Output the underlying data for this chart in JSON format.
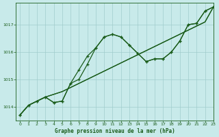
{
  "background_color": "#c8eaea",
  "grid_color": "#a0cccc",
  "line_color": "#1a5c1a",
  "text_color": "#1a5c1a",
  "xlabel": "Graphe pression niveau de la mer (hPa)",
  "xlim": [
    -0.5,
    23
  ],
  "ylim": [
    1013.5,
    1017.8
  ],
  "yticks": [
    1014,
    1015,
    1016,
    1017
  ],
  "xticks": [
    0,
    1,
    2,
    3,
    4,
    5,
    6,
    7,
    8,
    9,
    10,
    11,
    12,
    13,
    14,
    15,
    16,
    17,
    18,
    19,
    20,
    21,
    22,
    23
  ],
  "hours": [
    0,
    1,
    2,
    3,
    4,
    5,
    6,
    7,
    8,
    9,
    10,
    11,
    12,
    13,
    14,
    15,
    16,
    17,
    18,
    19,
    20,
    21,
    22,
    23
  ],
  "line_wavy": [
    1013.7,
    1014.05,
    1014.2,
    1014.35,
    1014.15,
    1014.2,
    1014.85,
    1015.0,
    1015.55,
    1016.15,
    1016.55,
    1016.65,
    1016.55,
    1016.25,
    1015.95,
    1015.65,
    1015.75,
    1015.75,
    1016.0,
    1016.4,
    1017.0,
    1017.05,
    1017.5,
    1017.65
  ],
  "line_straight1": [
    1013.7,
    1014.05,
    1014.2,
    1014.35,
    1014.45,
    1014.55,
    1014.7,
    1014.85,
    1015.0,
    1015.15,
    1015.3,
    1015.45,
    1015.6,
    1015.75,
    1015.9,
    1016.05,
    1016.2,
    1016.35,
    1016.5,
    1016.65,
    1016.8,
    1016.95,
    1017.1,
    1017.65
  ],
  "line_straight2": [
    1013.7,
    1014.05,
    1014.2,
    1014.35,
    1014.45,
    1014.55,
    1014.7,
    1014.85,
    1015.0,
    1015.15,
    1015.3,
    1015.45,
    1015.6,
    1015.75,
    1015.9,
    1016.05,
    1016.2,
    1016.35,
    1016.5,
    1016.65,
    1016.8,
    1016.95,
    1017.1,
    1017.65
  ],
  "line_bumpy": [
    1013.7,
    1014.05,
    1014.2,
    1014.35,
    1014.15,
    1014.2,
    1014.85,
    1015.35,
    1015.85,
    1016.15,
    1016.55,
    1016.65,
    1016.55,
    1016.25,
    1015.95,
    1015.65,
    1015.75,
    1015.75,
    1016.0,
    1016.4,
    1017.0,
    1017.05,
    1017.5,
    1017.65
  ]
}
